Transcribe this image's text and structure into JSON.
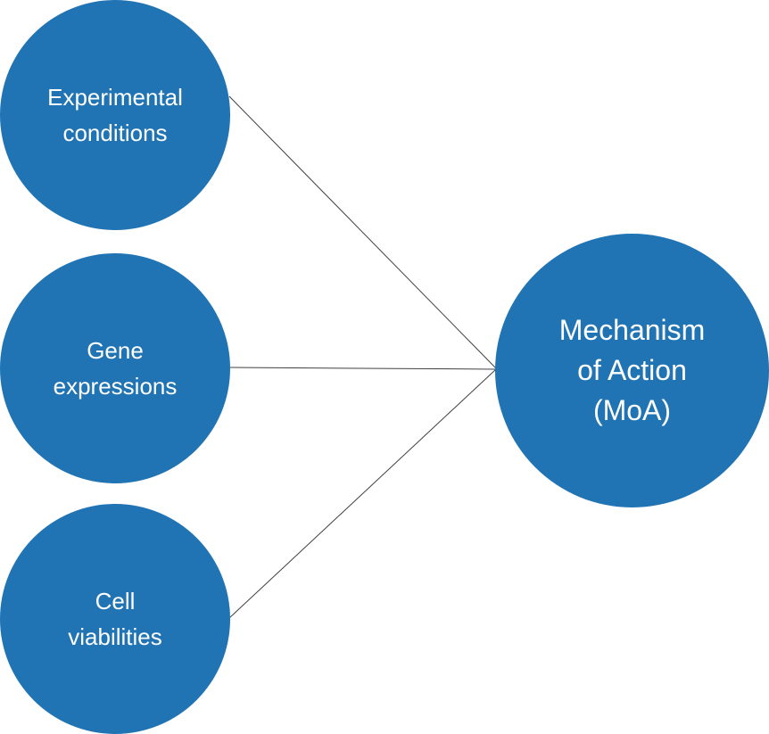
{
  "diagram": {
    "node_color": "#2174B4",
    "edge_color": "#404040",
    "inputs": [
      {
        "lines": [
          "Experimental",
          "conditions"
        ]
      },
      {
        "lines": [
          "Gene",
          "expressions"
        ]
      },
      {
        "lines": [
          "Cell",
          "viabilities"
        ]
      }
    ],
    "output": {
      "lines": [
        "Mechanism",
        "of Action",
        "(MoA)"
      ]
    }
  }
}
